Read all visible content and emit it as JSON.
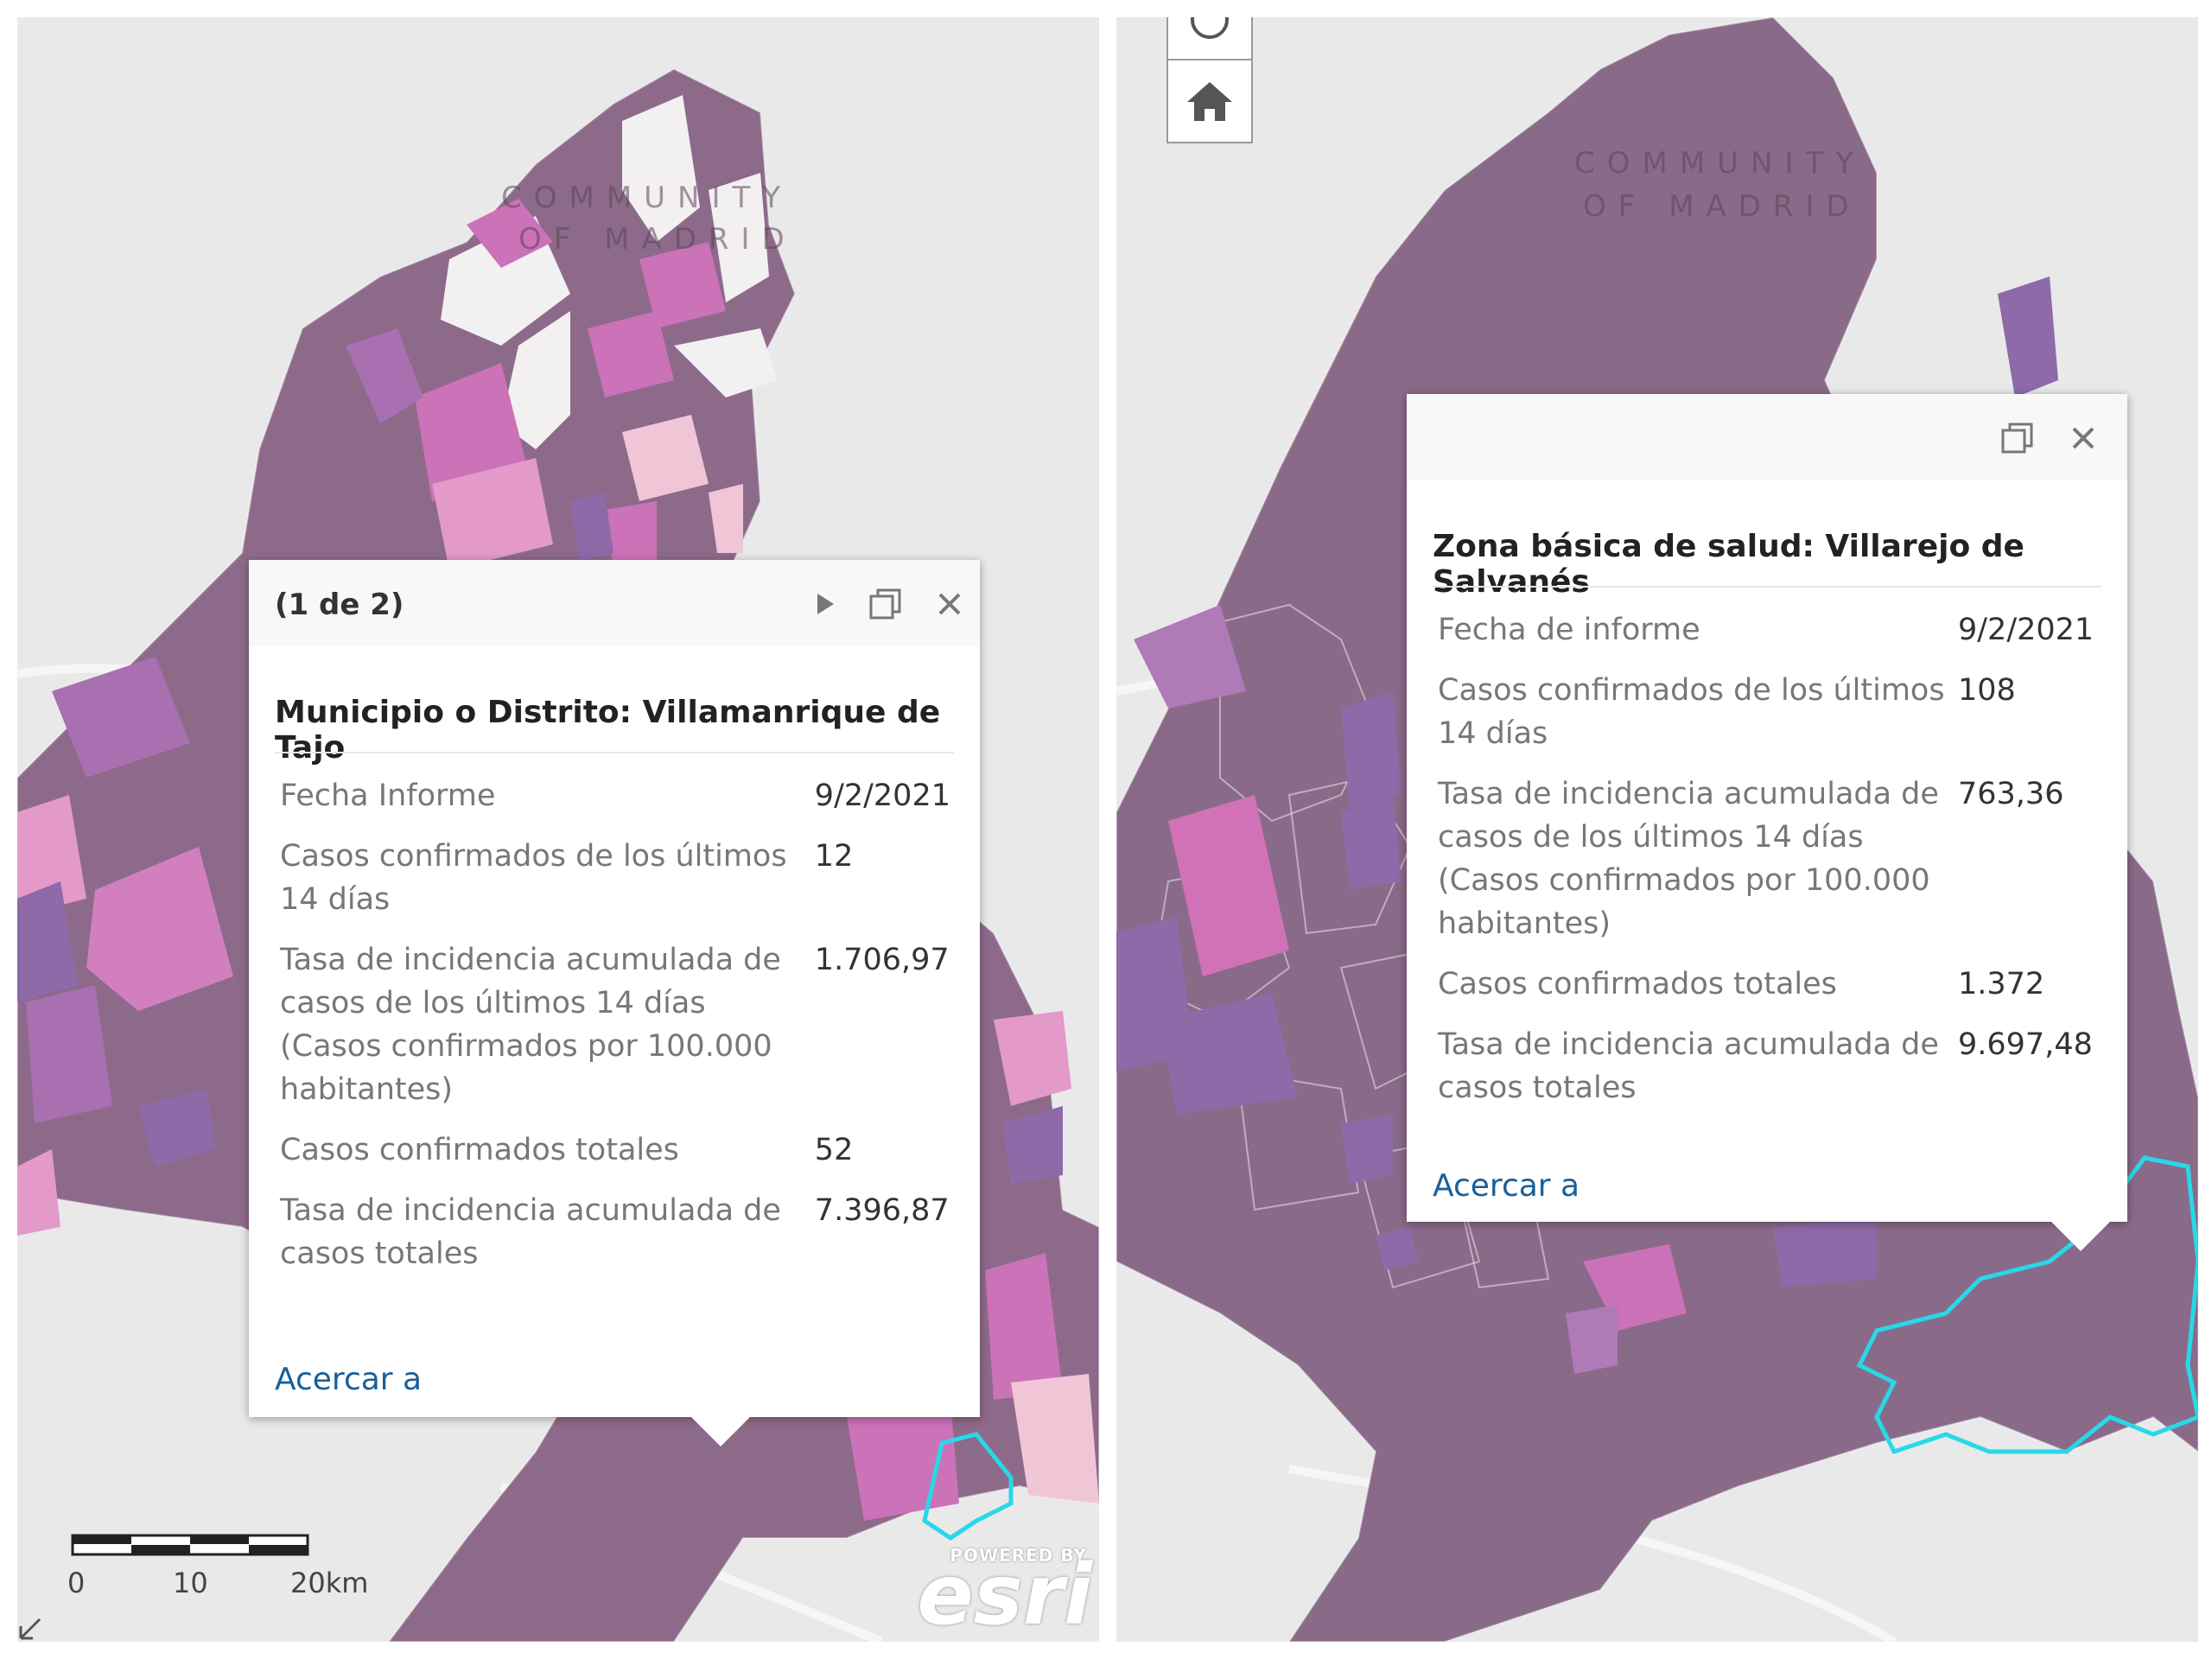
{
  "left_panel": {
    "map": {
      "region_label_line1": "COMMUNITY",
      "region_label_line2": "OF MADRID"
    },
    "popup": {
      "pager": "(1 de 2)",
      "title": "Municipio o Distrito: Villamanrique de Tajo",
      "rows": [
        {
          "label": "Fecha Informe",
          "value": "9/2/2021"
        },
        {
          "label": "Casos confirmados de los últimos 14 días",
          "value": "12"
        },
        {
          "label": "Tasa de incidencia acumulada de casos de los últimos 14 días (Casos confirmados por 100.000 habitantes)",
          "value": "1.706,97"
        },
        {
          "label": "Casos confirmados totales",
          "value": "52"
        },
        {
          "label": "Tasa de incidencia acumulada de casos totales",
          "value": "7.396,87"
        }
      ],
      "zoom_link": "Acercar a",
      "icons": [
        "next-icon",
        "maximize-icon",
        "close-icon"
      ]
    },
    "scalebar": {
      "labels": [
        "0",
        "10",
        "20km"
      ]
    },
    "attribution": {
      "powered_by": "POWERED BY",
      "brand": "esri"
    }
  },
  "right_panel": {
    "map": {
      "region_label_line1": "COMMUNITY",
      "region_label_line2": "OF MADRID"
    },
    "popup": {
      "title": "Zona básica de salud: Villarejo de Salvanés",
      "rows": [
        {
          "label": "Fecha de informe",
          "value": "9/2/2021"
        },
        {
          "label": "Casos confirmados de los últimos 14 días",
          "value": "108"
        },
        {
          "label": "Tasa de incidencia acumulada de casos de los últimos 14 días (Casos confirmados por 100.000 habitantes)",
          "value": "763,36"
        },
        {
          "label": "Casos confirmados totales",
          "value": "1.372"
        },
        {
          "label": "Tasa de incidencia acumulada de casos totales",
          "value": "9.697,48"
        }
      ],
      "zoom_link": "Acercar a",
      "icons": [
        "maximize-icon",
        "close-icon"
      ]
    },
    "buttons": [
      "compass-icon",
      "home-icon"
    ]
  },
  "colors": {
    "base_purple": "#8d6a8a",
    "dark_purple": "#7a5a78",
    "violet": "#8e6aa8",
    "magenta": "#cc72b8",
    "pink": "#e39ac8",
    "light_pink": "#f0c6d6",
    "white_area": "#f3f0f1",
    "highlight_cyan": "#28d8e8",
    "link_blue": "#1a5f9a"
  }
}
